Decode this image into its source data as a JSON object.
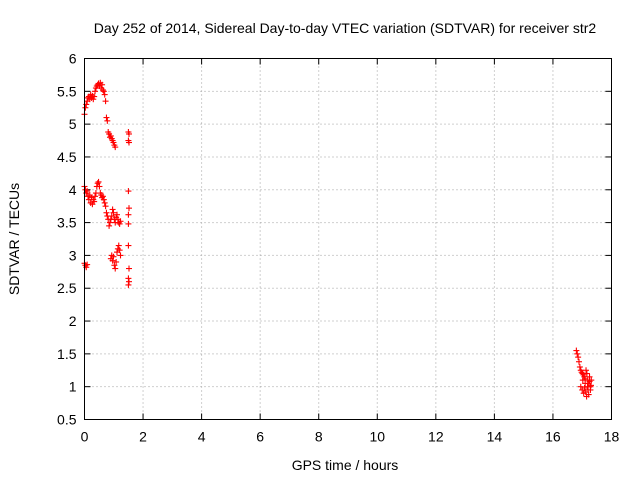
{
  "chart_data": {
    "type": "scatter",
    "title": "Day 252 of 2014, Sidereal Day-to-day VTEC variation (SDTVAR) for receiver str2",
    "xlabel": "GPS time / hours",
    "ylabel": "SDTVAR / TECUs",
    "xlim": [
      0,
      18
    ],
    "ylim": [
      0.5,
      6
    ],
    "xticks": [
      "0",
      "2",
      "4",
      "6",
      "8",
      "10",
      "12",
      "14",
      "16",
      "18"
    ],
    "yticks": [
      "0.5",
      "1",
      "1.5",
      "2",
      "2.5",
      "3",
      "3.5",
      "4",
      "4.5",
      "5",
      "5.5",
      "6"
    ],
    "grid": true,
    "legend": "none",
    "marker": "plus",
    "color": "#ff0000",
    "series": [
      {
        "x": [
          0.0,
          0.03,
          0.06,
          0.09,
          0.12,
          0.15,
          0.18,
          0.21,
          0.24,
          0.27,
          0.3,
          0.33,
          0.36,
          0.39,
          0.42,
          0.45,
          0.48,
          0.51,
          0.54,
          0.57,
          0.6,
          0.63,
          0.66,
          0.69,
          0.72,
          0.75,
          0.78,
          0.81,
          0.84,
          0.87,
          0.9,
          0.93,
          0.96,
          0.99,
          1.02,
          1.05,
          1.5,
          1.52,
          1.5,
          1.52
        ],
        "y": [
          5.15,
          5.25,
          5.3,
          5.35,
          5.4,
          5.42,
          5.38,
          5.45,
          5.4,
          5.43,
          5.38,
          5.42,
          5.5,
          5.55,
          5.58,
          5.6,
          5.62,
          5.58,
          5.63,
          5.55,
          5.6,
          5.52,
          5.5,
          5.45,
          5.35,
          5.1,
          5.05,
          4.88,
          4.85,
          4.8,
          4.82,
          4.78,
          4.75,
          4.72,
          4.68,
          4.65,
          4.88,
          4.85,
          4.75,
          4.72
        ]
      },
      {
        "x": [
          0.0,
          0.03,
          0.06,
          0.09,
          0.12,
          0.15,
          0.18,
          0.21,
          0.24,
          0.27,
          0.3,
          0.33,
          0.36,
          0.39,
          0.42,
          0.45,
          0.48,
          0.51,
          0.54,
          0.57,
          0.6,
          0.63,
          0.66,
          0.69,
          0.72,
          0.75,
          0.78,
          0.81,
          0.84,
          0.87,
          0.9,
          0.93,
          0.96,
          0.99,
          1.02,
          1.05,
          1.08,
          1.11,
          1.14,
          1.17,
          1.2,
          1.23,
          1.5,
          1.52,
          1.5,
          1.5
        ],
        "y": [
          4.05,
          4.0,
          3.95,
          3.98,
          3.9,
          3.85,
          3.92,
          3.8,
          3.88,
          3.78,
          3.85,
          3.82,
          3.9,
          3.95,
          4.05,
          4.1,
          4.12,
          4.05,
          3.95,
          3.92,
          3.88,
          3.9,
          3.85,
          3.8,
          3.75,
          3.65,
          3.6,
          3.55,
          3.45,
          3.5,
          3.55,
          3.6,
          3.7,
          3.65,
          3.55,
          3.5,
          3.58,
          3.62,
          3.55,
          3.5,
          3.48,
          3.52,
          3.98,
          3.72,
          3.62,
          3.48
        ]
      },
      {
        "x": [
          0.0,
          0.03,
          0.06,
          0.09,
          0.9,
          0.93,
          0.96,
          0.99,
          1.02,
          1.05,
          1.08,
          1.11,
          1.14,
          1.17,
          1.2,
          1.23,
          1.5,
          1.52,
          1.5,
          1.52,
          1.5
        ],
        "y": [
          2.88,
          2.85,
          2.82,
          2.86,
          2.95,
          3.0,
          2.92,
          2.98,
          2.85,
          2.8,
          2.9,
          3.05,
          3.1,
          3.15,
          3.08,
          3.0,
          3.15,
          2.8,
          2.65,
          2.6,
          2.55
        ]
      },
      {
        "x": [
          16.8,
          16.83,
          16.86,
          16.89,
          16.92,
          16.95,
          16.98,
          17.01,
          17.04,
          17.07,
          17.1,
          17.13,
          17.16,
          17.19,
          17.22,
          17.25,
          17.28,
          17.31,
          16.95,
          17.0,
          17.05,
          17.1,
          17.15,
          17.2,
          17.25,
          17.3,
          17.02,
          17.08,
          17.12,
          17.18,
          17.22,
          17.28
        ],
        "y": [
          1.55,
          1.5,
          1.45,
          1.38,
          1.3,
          1.25,
          1.22,
          1.2,
          1.18,
          1.15,
          1.12,
          1.25,
          1.2,
          1.1,
          1.05,
          1.15,
          1.0,
          1.1,
          1.0,
          0.95,
          0.9,
          1.05,
          0.85,
          0.95,
          1.08,
          1.02,
          1.1,
          0.98,
          0.92,
          1.0,
          0.88,
          0.95
        ]
      }
    ]
  }
}
